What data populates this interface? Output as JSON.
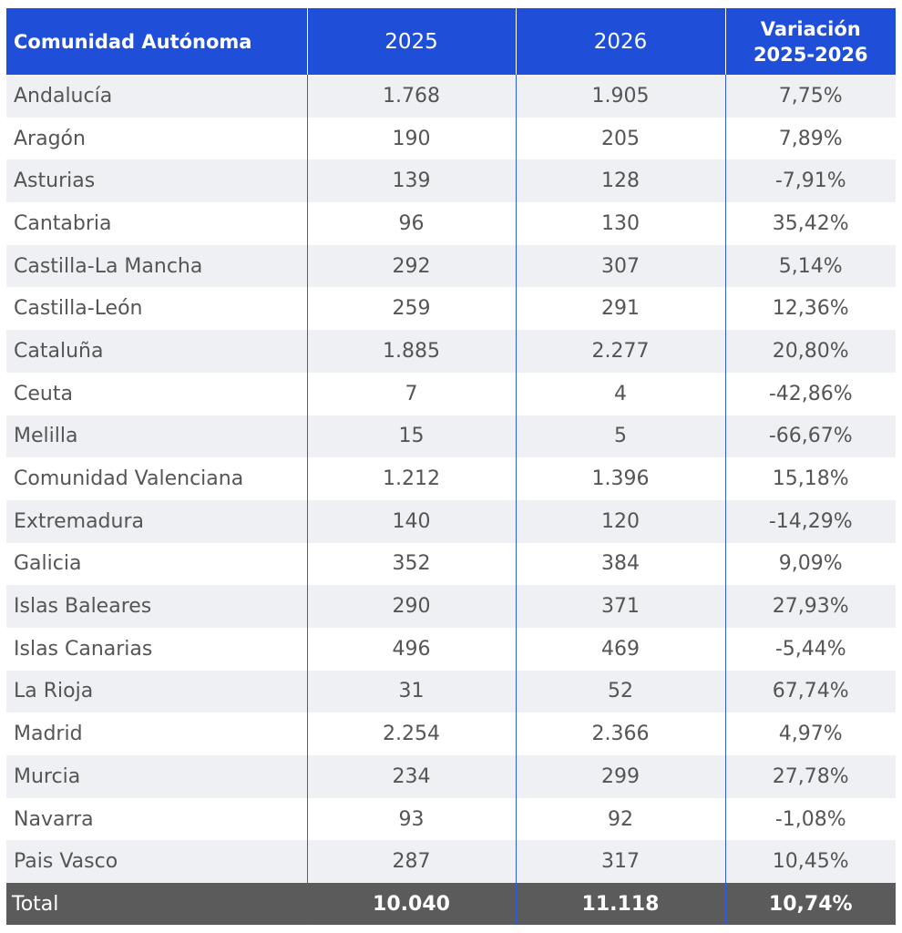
{
  "header": {
    "col1": "Comunidad Autónoma",
    "col2": "2025",
    "col3": "2026",
    "col4_line1": "Variación",
    "col4_line2": "2025-2026"
  },
  "rows": [
    {
      "region": "Andalucía",
      "y2025": "1.768",
      "y2026": "1.905",
      "variation": "7,75%"
    },
    {
      "region": "Aragón",
      "y2025": "190",
      "y2026": "205",
      "variation": "7,89%"
    },
    {
      "region": "Asturias",
      "y2025": "139",
      "y2026": "128",
      "variation": "-7,91%"
    },
    {
      "region": "Cantabria",
      "y2025": "96",
      "y2026": "130",
      "variation": "35,42%"
    },
    {
      "region": "Castilla-La Mancha",
      "y2025": "292",
      "y2026": "307",
      "variation": "5,14%"
    },
    {
      "region": "Castilla-León",
      "y2025": "259",
      "y2026": "291",
      "variation": "12,36%"
    },
    {
      "region": "Cataluña",
      "y2025": "1.885",
      "y2026": "2.277",
      "variation": "20,80%"
    },
    {
      "region": "Ceuta",
      "y2025": "7",
      "y2026": "4",
      "variation": "-42,86%"
    },
    {
      "region": "Melilla",
      "y2025": "15",
      "y2026": "5",
      "variation": "-66,67%"
    },
    {
      "region": "Comunidad Valenciana",
      "y2025": "1.212",
      "y2026": "1.396",
      "variation": "15,18%"
    },
    {
      "region": "Extremadura",
      "y2025": "140",
      "y2026": "120",
      "variation": "-14,29%"
    },
    {
      "region": "Galicia",
      "y2025": "352",
      "y2026": "384",
      "variation": "9,09%"
    },
    {
      "region": "Islas Baleares",
      "y2025": "290",
      "y2026": "371",
      "variation": "27,93%"
    },
    {
      "region": "Islas Canarias",
      "y2025": "496",
      "y2026": "469",
      "variation": "-5,44%"
    },
    {
      "region": "La Rioja",
      "y2025": "31",
      "y2026": "52",
      "variation": "67,74%"
    },
    {
      "region": "Madrid",
      "y2025": "2.254",
      "y2026": "2.366",
      "variation": "4,97%"
    },
    {
      "region": "Murcia",
      "y2025": "234",
      "y2026": "299",
      "variation": "27,78%"
    },
    {
      "region": "Navarra",
      "y2025": "93",
      "y2026": "92",
      "variation": "-1,08%"
    },
    {
      "region": "Pais Vasco",
      "y2025": "287",
      "y2026": "317",
      "variation": "10,45%"
    }
  ],
  "total": {
    "label": "Total",
    "y2025": "10.040",
    "y2026": "11.118",
    "variation": "10,74%"
  },
  "colors": {
    "header_bg": "#1f4fd8",
    "total_bg": "#5b5b5b",
    "stripe": "#eef0f3",
    "text": "#555555"
  }
}
